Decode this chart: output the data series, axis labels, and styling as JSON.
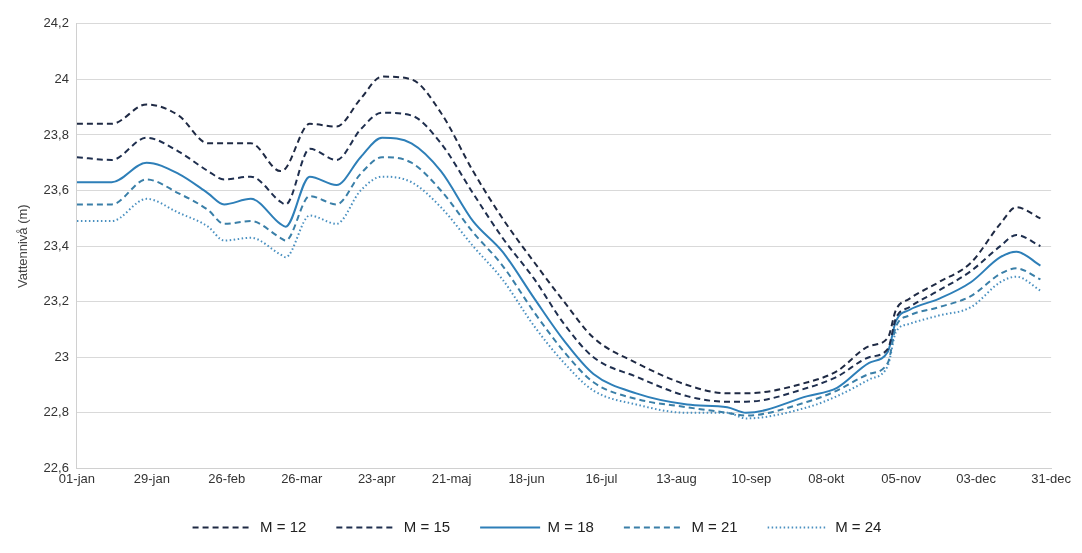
{
  "chart_data": {
    "type": "line",
    "ylabel": "Vattennivå (m)",
    "x": [
      "--01-01",
      "--01-14",
      "--01-27",
      "--02-08",
      "--02-19",
      "--02-25",
      "--03-07",
      "--03-18",
      "--03-20",
      "--03-29",
      "--04-08",
      "--04-17",
      "--04-25",
      "--05-06",
      "--05-17",
      "--05-29",
      "--06-09",
      "--06-21",
      "--07-02",
      "--07-13",
      "--07-29",
      "--08-17",
      "--09-01",
      "--09-08",
      "--10-01",
      "--10-12",
      "--10-24",
      "--10-31",
      "--11-03",
      "--11-08",
      "--11-19",
      "--12-01",
      "--12-12",
      "--12-18",
      "--12-27"
    ],
    "series": [
      {
        "name": "M = 12",
        "color": "#1f2a44",
        "line_style": "dashed",
        "values": [
          23.84,
          23.84,
          23.91,
          23.87,
          23.77,
          23.77,
          23.77,
          23.67,
          23.68,
          23.84,
          23.83,
          23.93,
          24.01,
          24.0,
          23.88,
          23.67,
          23.5,
          23.34,
          23.2,
          23.07,
          22.98,
          22.9,
          22.87,
          22.87,
          22.91,
          22.95,
          23.04,
          23.07,
          23.17,
          23.21,
          23.27,
          23.34,
          23.48,
          23.54,
          23.5
        ]
      },
      {
        "name": "M = 15",
        "color": "#1f2f4f",
        "line_style": "dashed",
        "values": [
          23.72,
          23.71,
          23.79,
          23.74,
          23.67,
          23.64,
          23.65,
          23.56,
          23.55,
          23.75,
          23.71,
          23.82,
          23.88,
          23.87,
          23.77,
          23.59,
          23.43,
          23.28,
          23.12,
          23.0,
          22.93,
          22.86,
          22.84,
          22.84,
          22.89,
          22.93,
          23.0,
          23.03,
          23.14,
          23.18,
          23.24,
          23.31,
          23.4,
          23.44,
          23.4
        ]
      },
      {
        "name": "M = 18",
        "color": "#2e7fb8",
        "line_style": "solid",
        "values": [
          23.63,
          23.63,
          23.7,
          23.66,
          23.59,
          23.55,
          23.57,
          23.48,
          23.47,
          23.65,
          23.62,
          23.72,
          23.79,
          23.77,
          23.67,
          23.49,
          23.38,
          23.21,
          23.06,
          22.94,
          22.87,
          22.83,
          22.82,
          22.8,
          22.86,
          22.89,
          22.98,
          23.02,
          23.13,
          23.17,
          23.21,
          23.27,
          23.36,
          23.38,
          23.33
        ]
      },
      {
        "name": "M = 21",
        "color": "#3a7fa8",
        "line_style": "dashed",
        "values": [
          23.55,
          23.55,
          23.64,
          23.59,
          23.53,
          23.48,
          23.49,
          23.43,
          23.42,
          23.58,
          23.55,
          23.66,
          23.72,
          23.7,
          23.6,
          23.45,
          23.33,
          23.16,
          23.02,
          22.91,
          22.85,
          22.82,
          22.8,
          22.79,
          22.84,
          22.88,
          22.94,
          22.98,
          23.11,
          23.15,
          23.18,
          23.22,
          23.3,
          23.32,
          23.28
        ]
      },
      {
        "name": "M = 24",
        "color": "#4a90c0",
        "line_style": "dotted",
        "values": [
          23.49,
          23.49,
          23.57,
          23.52,
          23.47,
          23.42,
          23.43,
          23.37,
          23.36,
          23.51,
          23.48,
          23.6,
          23.65,
          23.63,
          23.54,
          23.4,
          23.28,
          23.11,
          22.98,
          22.88,
          22.83,
          22.8,
          22.8,
          22.78,
          22.82,
          22.86,
          22.92,
          22.97,
          23.09,
          23.12,
          23.15,
          23.18,
          23.27,
          23.29,
          23.24
        ]
      }
    ],
    "xlim": [
      "--01-01",
      "--12-31"
    ],
    "xticks": [
      {
        "value": "--01-01",
        "label": "01-jan"
      },
      {
        "value": "--01-29",
        "label": "29-jan"
      },
      {
        "value": "--02-26",
        "label": "26-feb"
      },
      {
        "value": "--03-26",
        "label": "26-mar"
      },
      {
        "value": "--04-23",
        "label": "23-apr"
      },
      {
        "value": "--05-21",
        "label": "21-maj"
      },
      {
        "value": "--06-18",
        "label": "18-jun"
      },
      {
        "value": "--07-16",
        "label": "16-jul"
      },
      {
        "value": "--08-13",
        "label": "13-aug"
      },
      {
        "value": "--09-10",
        "label": "10-sep"
      },
      {
        "value": "--10-08",
        "label": "08-okt"
      },
      {
        "value": "--11-05",
        "label": "05-nov"
      },
      {
        "value": "--12-03",
        "label": "03-dec"
      },
      {
        "value": "--12-31",
        "label": "31-dec"
      }
    ],
    "ylim": [
      22.6,
      24.2
    ],
    "yticks": [
      {
        "value": 22.6,
        "label": "22,6"
      },
      {
        "value": 22.8,
        "label": "22,8"
      },
      23,
      {
        "value": 23.2,
        "label": "23,2"
      },
      {
        "value": 23.4,
        "label": "23,4"
      },
      {
        "value": 23.6,
        "label": "23,6"
      },
      {
        "value": 23.8,
        "label": "23,8"
      },
      24,
      {
        "value": 24.2,
        "label": "24,2"
      }
    ],
    "grid": "y",
    "legend": "bottom",
    "marker": "none"
  }
}
